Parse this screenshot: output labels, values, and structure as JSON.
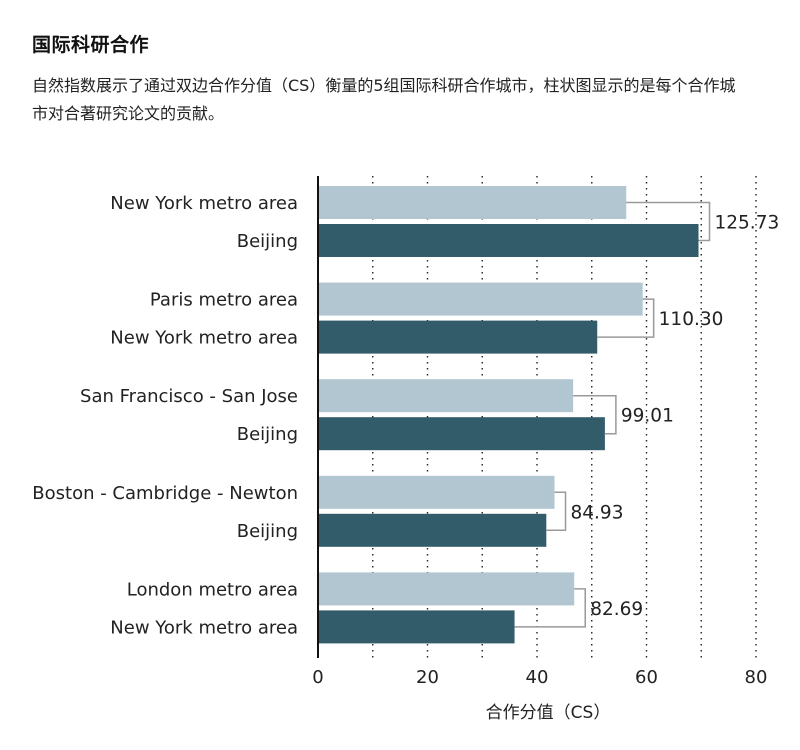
{
  "header": {
    "title": "国际科研合作",
    "subtitle": "自然指数展示了通过双边合作分值（CS）衡量的5组国际科研合作城市，柱状图显示的是每个合作城市对合著研究论文的贡献。"
  },
  "chart_data": {
    "type": "bar",
    "orientation": "horizontal",
    "xlabel": "合作分值（CS）",
    "xlim": [
      0,
      80
    ],
    "x_ticks": [
      "0",
      "20",
      "40",
      "60",
      "80"
    ],
    "grid": "vertical dotted lines at 10-unit intervals",
    "colors": {
      "first_city": "#b1c6d0",
      "second_city": "#325c69",
      "bracket": "#9a9a9a",
      "axis": "#111111"
    },
    "groups": [
      {
        "total_label": "125.73",
        "bars": [
          {
            "label": "New York metro area",
            "value": 56.3
          },
          {
            "label": "Beijing",
            "value": 69.5
          }
        ]
      },
      {
        "total_label": "110.30",
        "bars": [
          {
            "label": "Paris metro area",
            "value": 59.3
          },
          {
            "label": "New York metro area",
            "value": 51.0
          }
        ]
      },
      {
        "total_label": "99.01",
        "bars": [
          {
            "label": "San Francisco - San Jose",
            "value": 46.6
          },
          {
            "label": "Beijing",
            "value": 52.4
          }
        ]
      },
      {
        "total_label": "84.93",
        "bars": [
          {
            "label": "Boston - Cambridge - Newton",
            "value": 43.2
          },
          {
            "label": "Beijing",
            "value": 41.7
          }
        ]
      },
      {
        "total_label": "82.69",
        "bars": [
          {
            "label": "London metro area",
            "value": 46.8
          },
          {
            "label": "New York metro area",
            "value": 35.9
          }
        ]
      }
    ]
  }
}
